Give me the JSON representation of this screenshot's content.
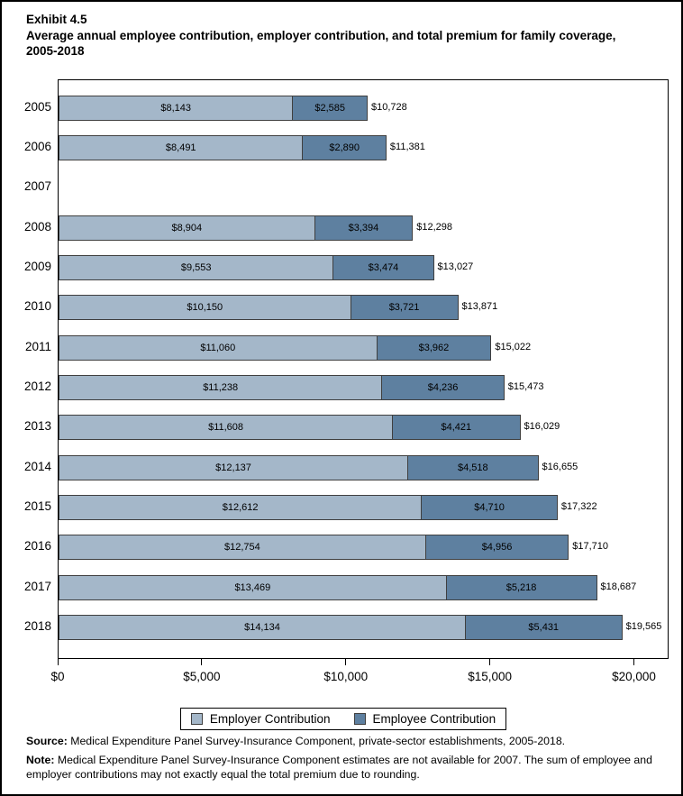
{
  "header": {
    "exhibit": "Exhibit 4.5",
    "title": "Average annual employee contribution, employer contribution, and total premium for family coverage, 2005-2018"
  },
  "legend": {
    "employer": "Employer Contribution",
    "employee": "Employee Contribution"
  },
  "footer": {
    "source_label": "Source:",
    "source_text": "Medical Expenditure Panel Survey-Insurance Component, private-sector establishments, 2005-2018.",
    "note_label": "Note:",
    "note_text": "Medical Expenditure Panel Survey-Insurance Component estimates are not available for 2007. The sum of employee and employer contributions may not exactly equal the total premium due to rounding."
  },
  "colors": {
    "employer": "#a4b7c9",
    "employee": "#5e80a0",
    "bar_border": "#3f3f3f",
    "axis": "#000000"
  },
  "chart_data": {
    "type": "bar",
    "orientation": "horizontal",
    "stacked": true,
    "title": "Average annual employee contribution, employer contribution, and total premium for family coverage, 2005-2018",
    "categories": [
      "2005",
      "2006",
      "2007",
      "2008",
      "2009",
      "2010",
      "2011",
      "2012",
      "2013",
      "2014",
      "2015",
      "2016",
      "2017",
      "2018"
    ],
    "series": [
      {
        "name": "Employer Contribution",
        "values": [
          8143,
          8491,
          null,
          8904,
          9553,
          10150,
          11060,
          11238,
          11608,
          12137,
          12612,
          12754,
          13469,
          14134
        ]
      },
      {
        "name": "Employee Contribution",
        "values": [
          2585,
          2890,
          null,
          3394,
          3474,
          3721,
          3962,
          4236,
          4421,
          4518,
          4710,
          4956,
          5218,
          5431
        ]
      }
    ],
    "totals": [
      10728,
      11381,
      null,
      12298,
      13027,
      13871,
      15022,
      15473,
      16029,
      16655,
      17322,
      17710,
      18687,
      19565
    ],
    "xlim": [
      0,
      21200
    ],
    "xticks": [
      0,
      5000,
      10000,
      15000,
      20000
    ],
    "xtick_labels": [
      "$0",
      "$5,000",
      "$10,000",
      "$15,000",
      "$20,000"
    ],
    "grid": false,
    "legend_position": "bottom",
    "value_label_format": "$#,###",
    "missing_years": [
      "2007"
    ]
  }
}
